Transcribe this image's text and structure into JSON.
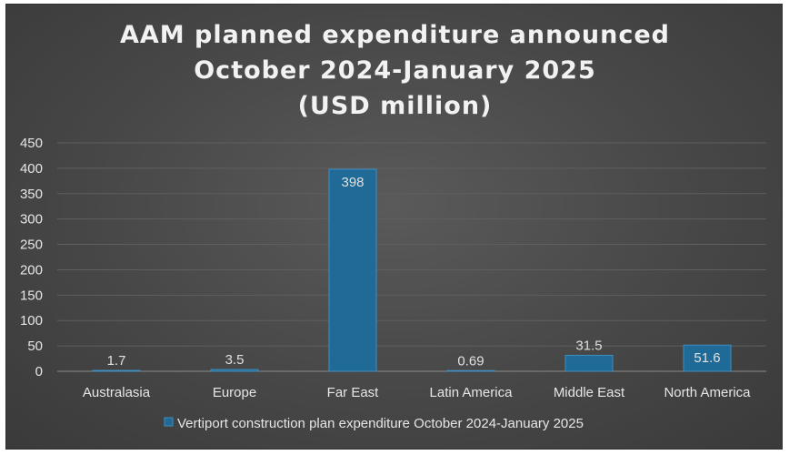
{
  "chart_data": {
    "type": "bar",
    "title_lines": [
      "AAM planned expenditure announced",
      "October 2024-January 2025",
      "(USD million)"
    ],
    "categories": [
      "Australasia",
      "Europe",
      "Far East",
      "Latin America",
      "Middle East",
      "North America"
    ],
    "series": [
      {
        "name": "Vertiport construction plan expenditure October 2024-January 2025",
        "values": [
          1.7,
          3.5,
          398,
          0.69,
          31.5,
          51.6
        ],
        "labels": [
          "1.7",
          "3.5",
          "398",
          "0.69",
          "31.5",
          "51.6"
        ]
      }
    ],
    "ylim": [
      0,
      450
    ],
    "yticks": [
      0,
      50,
      100,
      150,
      200,
      250,
      300,
      350,
      400,
      450
    ],
    "grid": true,
    "legend": "bottom",
    "colors": {
      "bar": "#1f6a96",
      "bar_edge": "#3f8fc0"
    }
  }
}
